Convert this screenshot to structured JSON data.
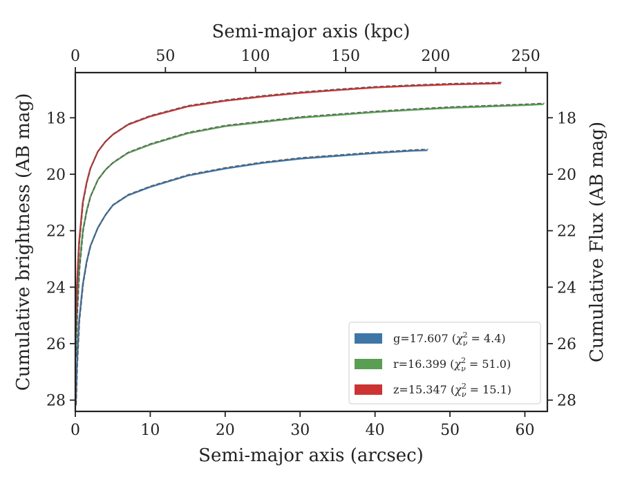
{
  "chart_data": {
    "type": "line",
    "xlabel": "Semi-major axis (arcsec)",
    "x2label": "Semi-major axis (kpc)",
    "ylabel": "Cumulative brightness (AB mag)",
    "y2label": "Cumulative Flux (AB mag)",
    "xlim": [
      0,
      63
    ],
    "x2lim": [
      0,
      262
    ],
    "ylim": [
      28.4,
      16.4
    ],
    "y_inverted": true,
    "xticks": [
      "0",
      "10",
      "20",
      "30",
      "40",
      "50",
      "60"
    ],
    "x2ticks": [
      "0",
      "50",
      "100",
      "150",
      "200",
      "250"
    ],
    "yticks": [
      "18",
      "20",
      "22",
      "24",
      "26",
      "28"
    ],
    "y2ticks": [
      "18",
      "20",
      "22",
      "24",
      "26",
      "28"
    ],
    "legend_position": "lower right",
    "series": [
      {
        "name": "g",
        "total_mag": "17.607",
        "chi2": "4.4",
        "color": "#3f76a8",
        "x": [
          0.05,
          0.2,
          0.5,
          1,
          1.5,
          2,
          3,
          4,
          5,
          7,
          10,
          15,
          20,
          25,
          30,
          35,
          40,
          45,
          47
        ],
        "y": [
          28.2,
          26.8,
          25.2,
          23.9,
          23.1,
          22.55,
          21.9,
          21.45,
          21.1,
          20.75,
          20.45,
          20.05,
          19.8,
          19.6,
          19.45,
          19.35,
          19.25,
          19.17,
          19.15
        ]
      },
      {
        "name": "r",
        "total_mag": "16.399",
        "chi2": "51.0",
        "color": "#5a9e53",
        "x": [
          0.05,
          0.2,
          0.5,
          1,
          1.5,
          2,
          3,
          4,
          5,
          7,
          10,
          15,
          20,
          25,
          30,
          35,
          40,
          45,
          50,
          55,
          60,
          62.5
        ],
        "y": [
          26.5,
          25.0,
          23.4,
          22.0,
          21.3,
          20.8,
          20.2,
          19.85,
          19.6,
          19.25,
          18.95,
          18.55,
          18.3,
          18.15,
          18.0,
          17.9,
          17.8,
          17.72,
          17.65,
          17.6,
          17.55,
          17.52
        ]
      },
      {
        "name": "z",
        "total_mag": "15.347",
        "chi2": "15.1",
        "color": "#cc3333",
        "x": [
          0.05,
          0.2,
          0.5,
          1,
          1.5,
          2,
          3,
          4,
          5,
          7,
          10,
          15,
          20,
          25,
          30,
          35,
          40,
          45,
          50,
          56.8
        ],
        "y": [
          25.6,
          24.0,
          22.4,
          21.0,
          20.3,
          19.8,
          19.2,
          18.85,
          18.6,
          18.25,
          17.95,
          17.6,
          17.4,
          17.25,
          17.12,
          17.02,
          16.93,
          16.87,
          16.82,
          16.78
        ]
      }
    ]
  }
}
